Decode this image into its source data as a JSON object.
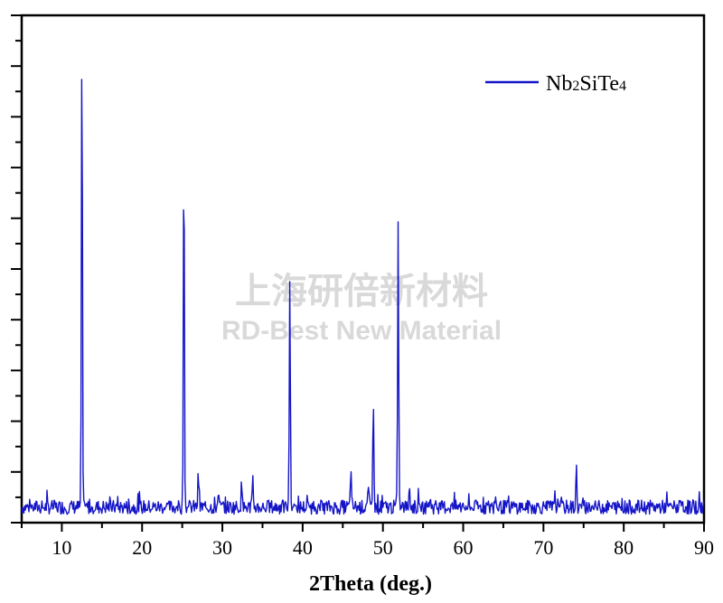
{
  "chart_data": {
    "type": "line",
    "title": "",
    "xlabel": "2Theta (deg.)",
    "ylabel": "",
    "xlim": [
      5,
      90
    ],
    "ylim": [
      0,
      100
    ],
    "x_ticks": [
      10,
      20,
      30,
      40,
      50,
      60,
      70,
      80,
      90
    ],
    "grid": false,
    "legend": {
      "placement": "top-right",
      "entries": [
        {
          "label_main": "Nb",
          "sub1": "2",
          "mid": "SiTe",
          "sub2": "4"
        }
      ]
    },
    "series_color": "#1515c8",
    "series": [
      {
        "name": "Nb2SiTe4",
        "baseline": 2.5,
        "noise_amplitude": 2.8,
        "peaks": [
          {
            "x": 12.5,
            "y": 97
          },
          {
            "x": 25.2,
            "y": 75
          },
          {
            "x": 27.0,
            "y": 9
          },
          {
            "x": 29.5,
            "y": 6
          },
          {
            "x": 32.4,
            "y": 7
          },
          {
            "x": 33.8,
            "y": 8
          },
          {
            "x": 38.4,
            "y": 48
          },
          {
            "x": 46.0,
            "y": 10
          },
          {
            "x": 48.2,
            "y": 6
          },
          {
            "x": 48.8,
            "y": 25
          },
          {
            "x": 51.9,
            "y": 59
          },
          {
            "x": 53.3,
            "y": 7
          },
          {
            "x": 55.9,
            "y": 5
          },
          {
            "x": 64.0,
            "y": 5
          },
          {
            "x": 71.8,
            "y": 5
          },
          {
            "x": 74.1,
            "y": 10
          }
        ]
      }
    ]
  },
  "watermark": {
    "cn": "上海研倍新材料",
    "en": "RD-Best New Material"
  }
}
